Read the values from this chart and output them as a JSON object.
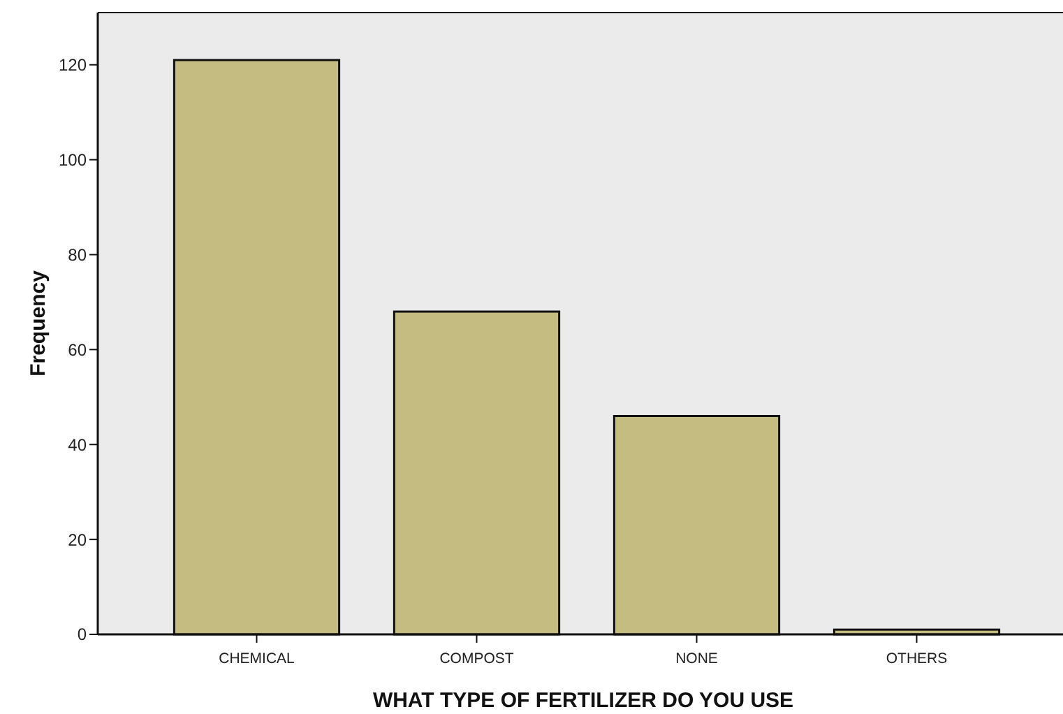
{
  "chart_data": {
    "type": "bar",
    "xlabel": "WHAT TYPE OF FERTILIZER DO YOU USE",
    "ylabel": "Frequency",
    "categories": [
      "CHEMICAL",
      "COMPOST",
      "NONE",
      "OTHERS"
    ],
    "values": [
      121,
      68,
      46,
      1
    ],
    "color": "#c5bc82",
    "ylim": [
      0,
      131
    ],
    "yticks": [
      0,
      20,
      40,
      60,
      80,
      100,
      120
    ],
    "grid": false
  }
}
